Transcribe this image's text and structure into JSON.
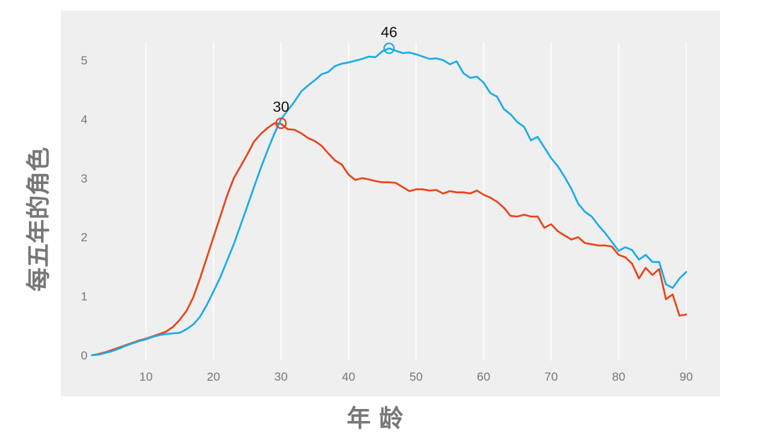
{
  "chart_data": {
    "type": "line",
    "title": "",
    "xlabel": "年 龄",
    "ylabel": "每五年的角色",
    "xlim": [
      2,
      90
    ],
    "ylim": [
      0,
      5.2
    ],
    "xticks": [
      10,
      20,
      30,
      40,
      50,
      60,
      70,
      80,
      90
    ],
    "yticks": [
      0,
      1,
      2,
      3,
      4,
      5
    ],
    "grid": "vertical",
    "legend": "none",
    "background": "#efefef",
    "series": [
      {
        "color": "#e8441a",
        "x": [
          2,
          3,
          4,
          5,
          6,
          7,
          8,
          9,
          10,
          11,
          12,
          13,
          14,
          15,
          16,
          17,
          18,
          19,
          20,
          21,
          22,
          23,
          24,
          25,
          26,
          27,
          28,
          29,
          30,
          31,
          32,
          33,
          34,
          35,
          36,
          37,
          38,
          39,
          40,
          41,
          42,
          43,
          44,
          45,
          46,
          47,
          48,
          49,
          50,
          51,
          52,
          53,
          54,
          55,
          56,
          57,
          58,
          59,
          60,
          61,
          62,
          63,
          64,
          65,
          66,
          67,
          68,
          69,
          70,
          71,
          72,
          73,
          74,
          75,
          76,
          77,
          78,
          79,
          80,
          81,
          82,
          83,
          84,
          85,
          86,
          87,
          88,
          89,
          90
        ],
        "y": [
          0,
          0.02,
          0.05,
          0.09,
          0.13,
          0.17,
          0.21,
          0.25,
          0.28,
          0.32,
          0.36,
          0.4,
          0.48,
          0.6,
          0.75,
          0.98,
          1.3,
          1.65,
          2.0,
          2.35,
          2.7,
          3.0,
          3.2,
          3.4,
          3.62,
          3.75,
          3.85,
          3.93,
          3.92,
          3.83,
          3.82,
          3.76,
          3.68,
          3.63,
          3.55,
          3.42,
          3.3,
          3.23,
          3.06,
          2.97,
          3.0,
          2.98,
          2.95,
          2.93,
          2.93,
          2.92,
          2.85,
          2.78,
          2.81,
          2.81,
          2.79,
          2.8,
          2.74,
          2.78,
          2.76,
          2.76,
          2.74,
          2.79,
          2.72,
          2.67,
          2.6,
          2.5,
          2.36,
          2.35,
          2.38,
          2.35,
          2.35,
          2.16,
          2.22,
          2.1,
          2.03,
          1.96,
          2.0,
          1.9,
          1.88,
          1.86,
          1.86,
          1.84,
          1.7,
          1.66,
          1.55,
          1.3,
          1.48,
          1.36,
          1.46,
          0.95,
          1.03,
          0.67,
          0.69
        ]
      },
      {
        "color": "#1aace8",
        "x": [
          2,
          3,
          4,
          5,
          6,
          7,
          8,
          9,
          10,
          11,
          12,
          13,
          14,
          15,
          16,
          17,
          18,
          19,
          20,
          21,
          22,
          23,
          24,
          25,
          26,
          27,
          28,
          29,
          30,
          31,
          32,
          33,
          34,
          35,
          36,
          37,
          38,
          39,
          40,
          41,
          42,
          43,
          44,
          45,
          46,
          47,
          48,
          49,
          50,
          51,
          52,
          53,
          54,
          55,
          56,
          57,
          58,
          59,
          60,
          61,
          62,
          63,
          64,
          65,
          66,
          67,
          68,
          69,
          70,
          71,
          72,
          73,
          74,
          75,
          76,
          77,
          78,
          79,
          80,
          81,
          82,
          83,
          84,
          85,
          86,
          87,
          88,
          89,
          90
        ],
        "y": [
          0,
          0.01,
          0.04,
          0.07,
          0.11,
          0.16,
          0.2,
          0.24,
          0.27,
          0.31,
          0.34,
          0.36,
          0.37,
          0.38,
          0.44,
          0.52,
          0.65,
          0.85,
          1.08,
          1.32,
          1.6,
          1.88,
          2.2,
          2.52,
          2.85,
          3.17,
          3.47,
          3.75,
          4.0,
          4.15,
          4.3,
          4.47,
          4.57,
          4.66,
          4.76,
          4.8,
          4.9,
          4.94,
          4.96,
          4.99,
          5.02,
          5.06,
          5.05,
          5.15,
          5.2,
          5.16,
          5.12,
          5.13,
          5.1,
          5.06,
          5.02,
          5.03,
          5.0,
          4.93,
          4.98,
          4.78,
          4.7,
          4.72,
          4.62,
          4.44,
          4.38,
          4.17,
          4.08,
          3.95,
          3.87,
          3.64,
          3.7,
          3.52,
          3.34,
          3.2,
          3.02,
          2.82,
          2.57,
          2.43,
          2.35,
          2.2,
          2.07,
          1.92,
          1.77,
          1.83,
          1.78,
          1.62,
          1.7,
          1.58,
          1.58,
          1.2,
          1.14,
          1.3,
          1.41
        ]
      }
    ],
    "annotations": [
      {
        "text": "30",
        "x": 30,
        "y": 3.93,
        "series": 0
      },
      {
        "text": "46",
        "x": 46,
        "y": 5.2,
        "series": 1
      }
    ]
  }
}
